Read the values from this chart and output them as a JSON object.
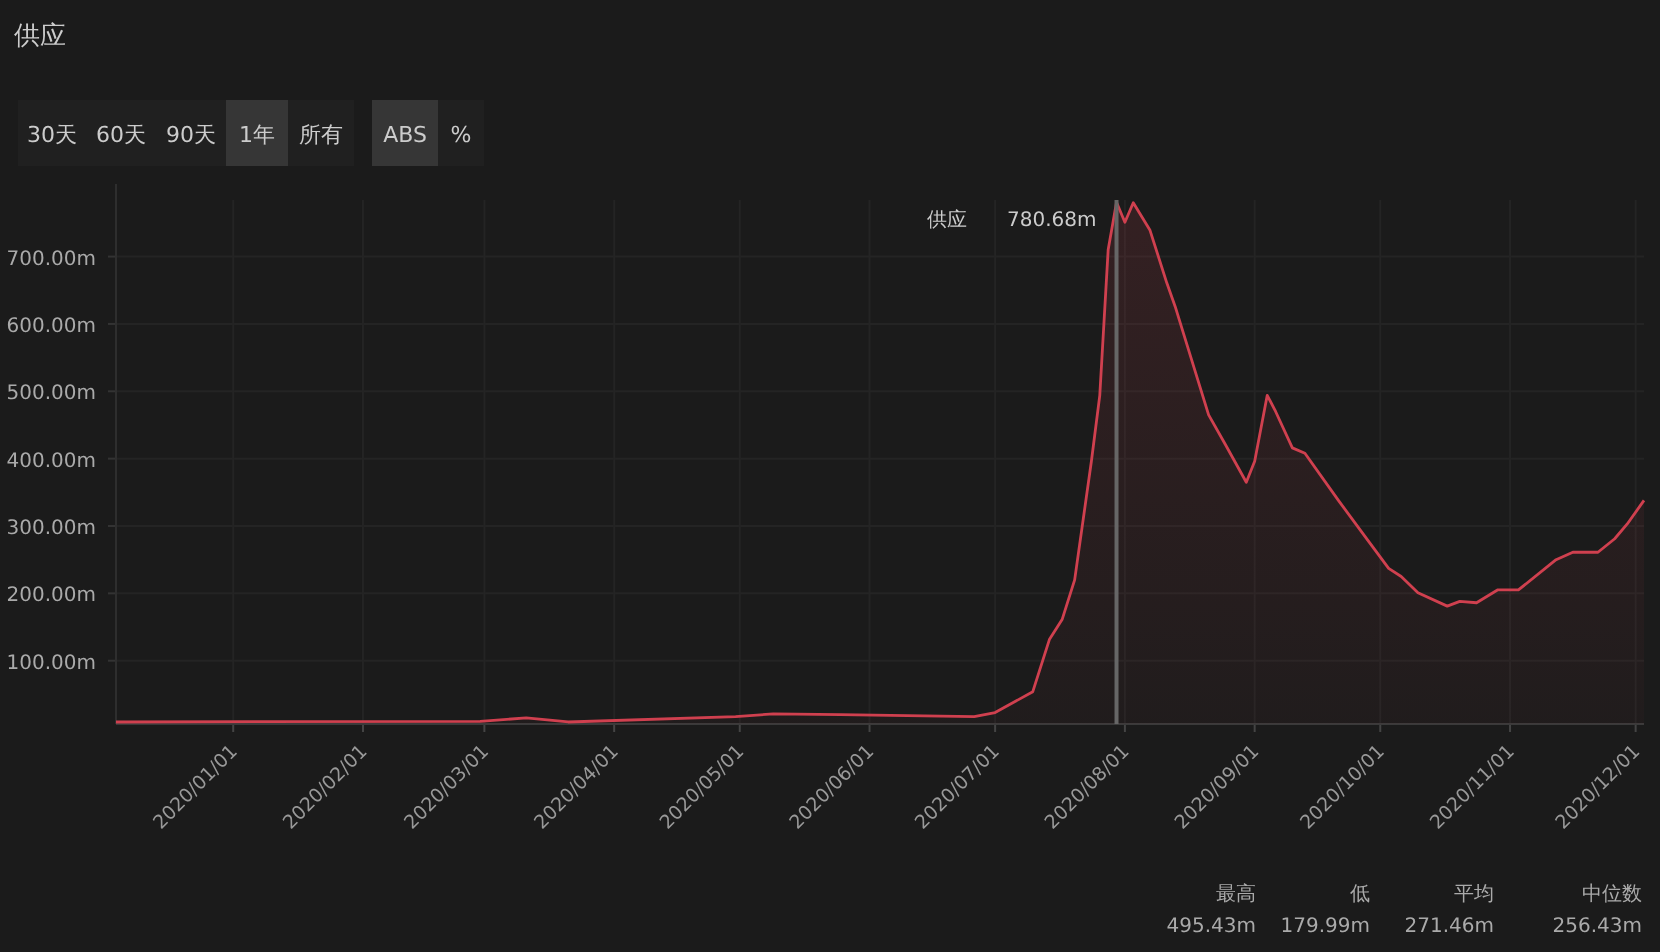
{
  "chart_data": {
    "type": "area",
    "title": "供应",
    "x": [
      "2019-12-04",
      "2020-02-29",
      "2020-03-11",
      "2020-03-21",
      "2020-04-30",
      "2020-05-09",
      "2020-05-25",
      "2020-06-26",
      "2020-07-01",
      "2020-07-10",
      "2020-07-14",
      "2020-07-17",
      "2020-07-20",
      "2020-07-24",
      "2020-07-26",
      "2020-07-28",
      "2020-07-30",
      "2020-08-01",
      "2020-08-03",
      "2020-08-07",
      "2020-08-11",
      "2020-08-13",
      "2020-08-21",
      "2020-08-25",
      "2020-08-30",
      "2020-09-01",
      "2020-09-04",
      "2020-09-06",
      "2020-09-10",
      "2020-09-13",
      "2020-09-21",
      "2020-09-28",
      "2020-10-03",
      "2020-10-06",
      "2020-10-10",
      "2020-10-17",
      "2020-10-20",
      "2020-10-24",
      "2020-10-29",
      "2020-11-03",
      "2020-11-12",
      "2020-11-16",
      "2020-11-22",
      "2020-11-26",
      "2020-11-29",
      "2020-12-03"
    ],
    "series": [
      {
        "color": "#d0404f",
        "values": [
          9,
          10,
          15,
          9,
          17,
          21,
          20,
          17,
          23,
          54,
          132,
          161,
          220,
          396,
          494,
          710,
          780.68,
          751,
          780,
          739,
          661,
          626,
          465,
          421,
          365,
          396,
          494,
          470,
          416,
          408,
          338,
          279,
          237,
          225,
          201,
          181,
          188,
          186,
          205,
          205,
          250,
          261,
          261,
          281,
          303,
          338
        ]
      }
    ],
    "xlim": [
      "2019-12-04",
      "2020-12-03"
    ],
    "xticks": [
      {
        "value": "2020-01-01",
        "label": "2020/01/01"
      },
      {
        "value": "2020-02-01",
        "label": "2020/02/01"
      },
      {
        "value": "2020-03-01",
        "label": "2020/03/01"
      },
      {
        "value": "2020-04-01",
        "label": "2020/04/01"
      },
      {
        "value": "2020-05-01",
        "label": "2020/05/01"
      },
      {
        "value": "2020-06-01",
        "label": "2020/06/01"
      },
      {
        "value": "2020-07-01",
        "label": "2020/07/01"
      },
      {
        "value": "2020-08-01",
        "label": "2020/08/01"
      },
      {
        "value": "2020-09-01",
        "label": "2020/09/01"
      },
      {
        "value": "2020-10-01",
        "label": "2020/10/01"
      },
      {
        "value": "2020-11-01",
        "label": "2020/11/01"
      },
      {
        "value": "2020-12-01",
        "label": "2020/12/01"
      }
    ],
    "ylim": [
      6,
      784
    ],
    "yticks": [
      {
        "value": 100,
        "label": "100.00m"
      },
      {
        "value": 200,
        "label": "200.00m"
      },
      {
        "value": 300,
        "label": "300.00m"
      },
      {
        "value": 400,
        "label": "400.00m"
      },
      {
        "value": 500,
        "label": "500.00m"
      },
      {
        "value": 600,
        "label": "600.00m"
      },
      {
        "value": 700,
        "label": "700.00m"
      }
    ],
    "grid": true,
    "ref_lines": [
      {
        "axis": "x",
        "value": "2020-07-30",
        "color": "#666666"
      }
    ],
    "annotations": [
      "30天",
      "60天",
      "90天",
      "1年",
      "所有",
      "ABS",
      "%",
      "最高",
      "495.43m",
      "低",
      "179.99m",
      "平均",
      "271.46m",
      "中位数",
      "256.43m",
      "供应",
      {
        "text": "780.68m",
        "x": "2020-07-30",
        "y": 780.68
      }
    ]
  }
}
